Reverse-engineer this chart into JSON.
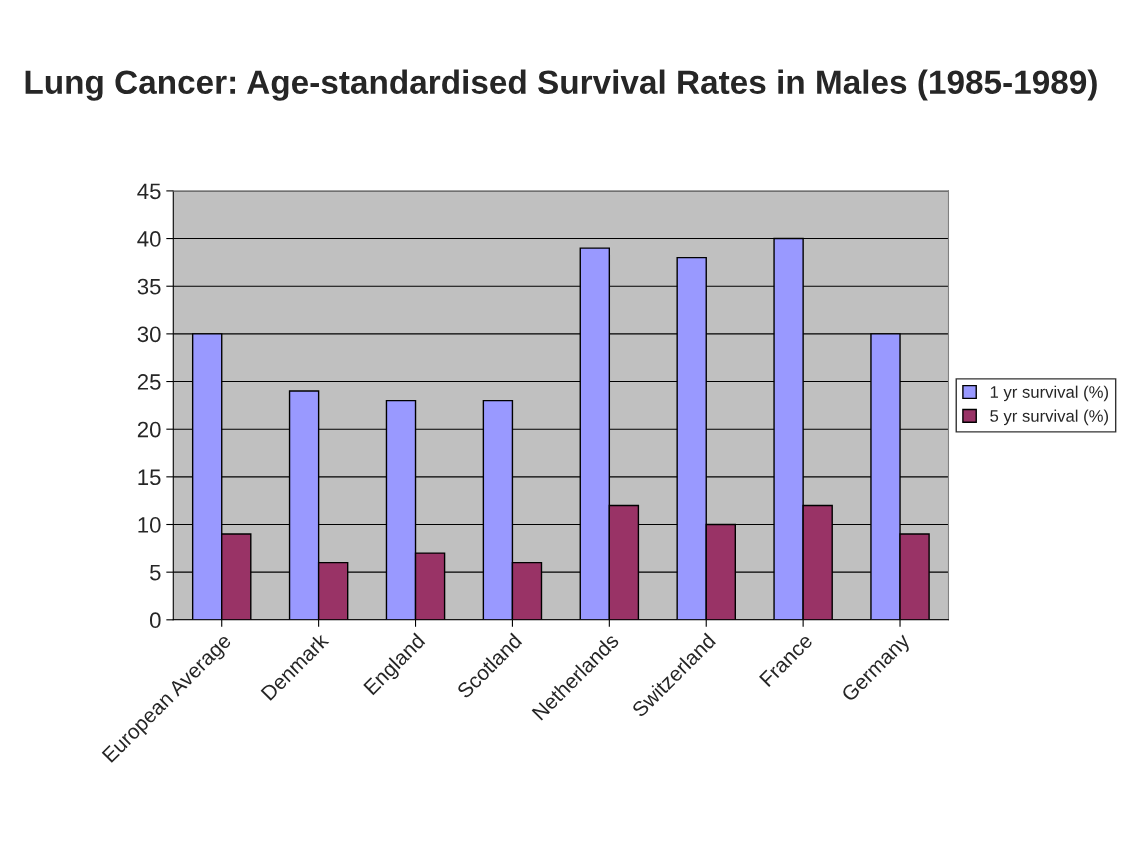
{
  "chart_data": {
    "type": "bar",
    "title": "Lung Cancer: Age-standardised Survival Rates in Males (1985-1989)",
    "categories": [
      "European Average",
      "Denmark",
      "England",
      "Scotland",
      "Netherlands",
      "Switzerland",
      "France",
      "Germany"
    ],
    "series": [
      {
        "name": "1 yr survival (%)",
        "color": "#9999ff",
        "values": [
          30,
          24,
          23,
          23,
          39,
          38,
          40,
          30
        ]
      },
      {
        "name": "5 yr survival (%)",
        "color": "#993366",
        "values": [
          9,
          6,
          7,
          6,
          12,
          10,
          12,
          9
        ]
      }
    ],
    "ylim": [
      0,
      45
    ],
    "yticks": [
      0,
      5,
      10,
      15,
      20,
      25,
      30,
      35,
      40,
      45
    ],
    "grid": "y",
    "legend": "right"
  }
}
